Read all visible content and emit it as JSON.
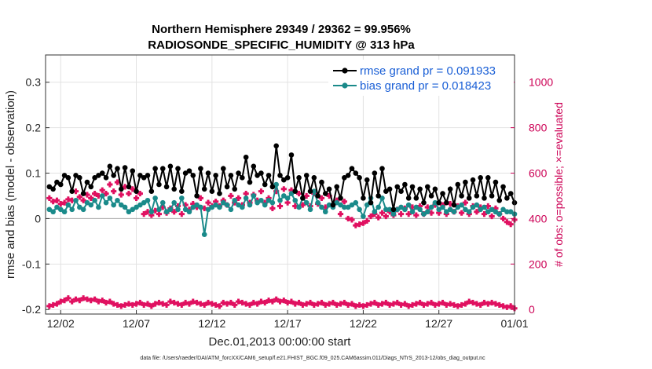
{
  "chart_data": {
    "type": "line",
    "title_line1": "Northern Hemisphere 29349 / 29362 = 99.956%",
    "title_line2": "RADIOSONDE_SPECIFIC_HUMIDITY @ 313 hPa",
    "xlabel": "Dec.01,2013 00:00:00 start",
    "ylabel": "rmse and bias (model - observation)",
    "ylabel_right": "# of obs: o=possible; ×=evaluated",
    "xlim": [
      0,
      31
    ],
    "ylim": [
      -0.21,
      0.36
    ],
    "ylim_right": [
      -20,
      1120
    ],
    "x_ticks": [
      {
        "v": 1,
        "label": "12/02"
      },
      {
        "v": 6,
        "label": "12/07"
      },
      {
        "v": 11,
        "label": "12/12"
      },
      {
        "v": 16,
        "label": "12/17"
      },
      {
        "v": 21,
        "label": "12/22"
      },
      {
        "v": 26,
        "label": "12/27"
      },
      {
        "v": 31,
        "label": "01/01"
      }
    ],
    "y_ticks": [
      {
        "v": -0.2,
        "label": "-0.2"
      },
      {
        "v": -0.1,
        "label": "-0.1"
      },
      {
        "v": 0,
        "label": "0"
      },
      {
        "v": 0.1,
        "label": "0.1"
      },
      {
        "v": 0.2,
        "label": "0.2"
      },
      {
        "v": 0.3,
        "label": "0.3"
      }
    ],
    "y_ticks_right": [
      {
        "v": 0,
        "label": "0"
      },
      {
        "v": 200,
        "label": "200"
      },
      {
        "v": 400,
        "label": "400"
      },
      {
        "v": 600,
        "label": "600"
      },
      {
        "v": 800,
        "label": "800"
      },
      {
        "v": 1000,
        "label": "1000"
      }
    ],
    "grid": true,
    "legend": "top-right",
    "x_start": 0.25,
    "x_step": 0.25,
    "series": [
      {
        "name": "rmse grand pr = 0.091933",
        "color": "#000000",
        "axis": "left",
        "values": [
          0.07,
          0.065,
          0.08,
          0.075,
          0.095,
          0.09,
          0.06,
          0.095,
          0.09,
          0.055,
          0.08,
          0.07,
          0.09,
          0.095,
          0.1,
          0.09,
          0.115,
          0.095,
          0.11,
          0.065,
          0.112,
          0.07,
          0.105,
          0.06,
          0.095,
          0.09,
          0.095,
          0.06,
          0.11,
          0.075,
          0.11,
          0.07,
          0.115,
          0.065,
          0.11,
          0.06,
          0.1,
          0.105,
          0.095,
          0.05,
          0.11,
          0.065,
          0.1,
          0.06,
          0.095,
          0.055,
          0.11,
          0.07,
          0.095,
          0.065,
          0.1,
          0.09,
          0.135,
          0.08,
          0.115,
          0.095,
          0.1,
          0.075,
          0.095,
          0.07,
          0.16,
          0.095,
          0.085,
          0.09,
          0.14,
          0.06,
          0.09,
          0.045,
          0.095,
          0.06,
          0.09,
          0.05,
          0.08,
          0.055,
          0.065,
          0.03,
          0.07,
          0.045,
          0.09,
          0.095,
          0.11,
          0.1,
          0.09,
          0.045,
          0.085,
          0.035,
          0.1,
          0.05,
          0.11,
          0.06,
          0.065,
          0.02,
          0.07,
          0.06,
          0.075,
          0.045,
          0.07,
          0.045,
          0.065,
          0.035,
          0.07,
          0.05,
          0.065,
          0.035,
          0.055,
          0.035,
          0.065,
          0.03,
          0.075,
          0.05,
          0.08,
          0.045,
          0.085,
          0.05,
          0.09,
          0.045,
          0.09,
          0.05,
          0.08,
          0.04,
          0.07,
          0.045,
          0.055,
          0.035
        ]
      },
      {
        "name": "bias grand pr = 0.018423",
        "color": "#1a8a8a",
        "axis": "left",
        "values": [
          0.02,
          0.015,
          0.025,
          0.02,
          0.015,
          0.03,
          0.02,
          0.04,
          0.025,
          0.02,
          0.035,
          0.03,
          0.04,
          0.025,
          0.05,
          0.035,
          0.045,
          0.03,
          0.04,
          0.03,
          0.025,
          0.015,
          0.02,
          0.025,
          0.03,
          0.035,
          0.04,
          0.015,
          0.045,
          0.02,
          0.035,
          0.015,
          0.02,
          0.035,
          0.02,
          0.045,
          0.02,
          0.015,
          0.025,
          0.03,
          0.025,
          -0.035,
          0.02,
          0.025,
          0.03,
          0.025,
          0.035,
          0.03,
          0.02,
          0.04,
          0.03,
          0.025,
          0.045,
          0.03,
          0.05,
          0.035,
          0.04,
          0.03,
          0.04,
          0.035,
          0.075,
          0.04,
          0.05,
          0.045,
          0.055,
          0.04,
          0.025,
          0.045,
          0.035,
          0.02,
          0.06,
          0.035,
          0.025,
          0.015,
          0.03,
          0.025,
          0.035,
          0.03,
          0.025,
          0.025,
          0.03,
          0.035,
          0.02,
          0.005,
          0.03,
          0.045,
          0.015,
          0.025,
          0.045,
          0.02,
          0.02,
          0.01,
          0.02,
          0.025,
          0.02,
          0.03,
          0.015,
          0.025,
          0.02,
          0.01,
          0.015,
          0.025,
          0.035,
          0.02,
          0.025,
          0.015,
          0.02,
          0.015,
          0.025,
          0.03,
          0.02,
          0.015,
          0.025,
          0.03,
          0.02,
          0.025,
          0.015,
          0.02,
          0.015,
          0.01,
          0.02,
          0.015,
          0.015,
          0.01
        ]
      },
      {
        "name": "possible obs",
        "color": "#e01060",
        "axis": "right",
        "hidden_legend": true,
        "values": [
          490,
          475,
          480,
          465,
          470,
          485,
          480,
          520,
          495,
          480,
          505,
          490,
          510,
          500,
          525,
          510,
          550,
          520,
          560,
          505,
          540,
          510,
          530,
          490,
          510,
          420,
          430,
          415,
          435,
          420,
          450,
          425,
          445,
          430,
          455,
          420,
          460,
          440,
          465,
          450,
          490,
          445,
          470,
          455,
          475,
          455,
          480,
          460,
          500,
          470,
          490,
          460,
          510,
          470,
          505,
          480,
          520,
          470,
          490,
          445,
          520,
          455,
          530,
          470,
          525,
          455,
          510,
          460,
          500,
          455,
          510,
          465,
          490,
          450,
          500,
          460,
          480,
          420,
          475,
          400,
          395,
          370,
          375,
          380,
          390,
          410,
          420,
          405,
          425,
          410,
          430,
          415,
          440,
          420,
          445,
          420,
          450,
          415,
          455,
          420,
          450,
          425,
          460,
          425,
          460,
          420,
          465,
          430,
          455,
          425,
          470,
          420,
          455,
          430,
          450,
          420,
          455,
          410,
          445,
          420,
          400,
          385,
          375,
          395
        ]
      },
      {
        "name": "evaluated obs",
        "color": "#e01060",
        "axis": "right",
        "hidden_legend": true,
        "values": [
          15,
          20,
          25,
          35,
          40,
          50,
          35,
          45,
          40,
          50,
          45,
          40,
          45,
          35,
          40,
          30,
          35,
          25,
          20,
          15,
          20,
          25,
          20,
          25,
          30,
          20,
          25,
          15,
          25,
          30,
          25,
          20,
          35,
          30,
          25,
          20,
          30,
          25,
          35,
          30,
          25,
          20,
          30,
          25,
          20,
          15,
          30,
          25,
          30,
          20,
          35,
          30,
          25,
          20,
          30,
          25,
          35,
          30,
          40,
          35,
          45,
          35,
          40,
          30,
          35,
          25,
          30,
          20,
          25,
          30,
          20,
          25,
          30,
          20,
          25,
          30,
          20,
          25,
          30,
          20,
          25,
          15,
          20,
          15,
          20,
          25,
          30,
          20,
          25,
          30,
          20,
          25,
          30,
          20,
          25,
          15,
          20,
          25,
          30,
          20,
          25,
          30,
          20,
          25,
          30,
          20,
          25,
          20,
          15,
          20,
          25,
          35,
          30,
          25,
          20,
          30,
          25,
          30,
          25,
          20,
          15,
          10,
          15,
          5
        ]
      }
    ]
  },
  "footnote": "data file: /Users/raeder/DAI/ATM_forcXX/CAM6_setup/f.e21.FHIST_BGC.f09_025.CAM6assim.011/Diags_NTrS_2013-12/obs_diag_output.nc"
}
